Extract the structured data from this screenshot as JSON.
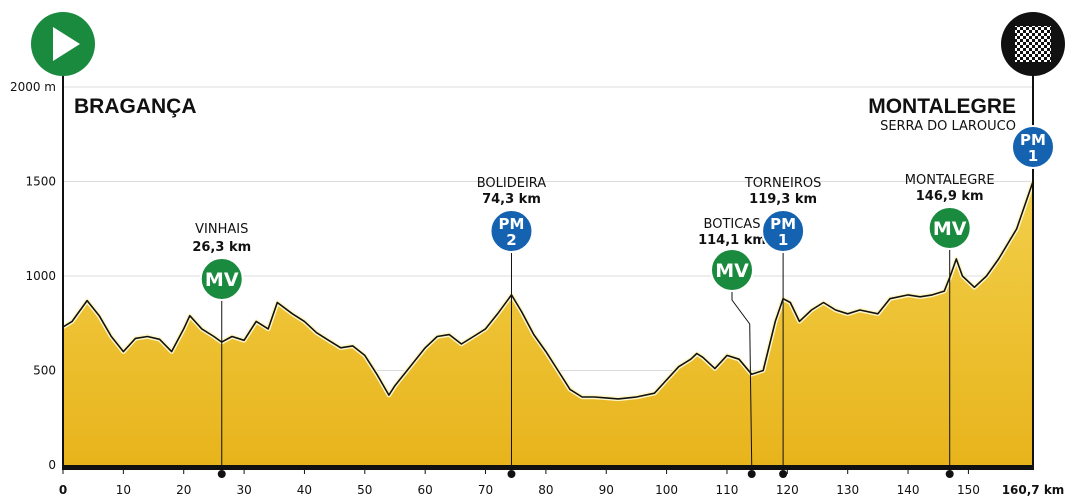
{
  "colors": {
    "profile_fill": "#e8b41c",
    "profile_fill_light": "#f2cf4a",
    "profile_stroke": "#111111",
    "climb_badge": "#1462b0",
    "sprint_badge": "#1a8a3e",
    "start_icon": "#1a8a3e",
    "finish_icon": "#111111"
  },
  "icons": {
    "start": "play-triangle-icon",
    "finish": "checkered-flag-icon"
  },
  "chart_data": {
    "type": "area",
    "title": "",
    "xlabel": "",
    "ylabel": "",
    "xlim": [
      0,
      160.7
    ],
    "ylim": [
      0,
      2000
    ],
    "y_unit": "m",
    "y_ticks": [
      "2000 m",
      "1500",
      "1000",
      "500",
      "0"
    ],
    "y_tick_values": [
      2000,
      1500,
      1000,
      500,
      0
    ],
    "x_ticks": [
      "0",
      "10",
      "20",
      "30",
      "40",
      "50",
      "60",
      "70",
      "80",
      "90",
      "100",
      "110",
      "120",
      "130",
      "140",
      "150"
    ],
    "x_tick_values": [
      0,
      10,
      20,
      30,
      40,
      50,
      60,
      70,
      80,
      90,
      100,
      110,
      120,
      130,
      140,
      150
    ],
    "x_end_label": "160,7 km",
    "x_end_value": 160.7,
    "grid": true,
    "start": {
      "name": "BRAGANÇA"
    },
    "finish": {
      "name": "MONTALEGRE",
      "subtitle": "SERRA DO LAROUCO"
    },
    "profile": {
      "x": [
        0,
        1.5,
        4,
        6,
        8,
        10,
        12,
        14,
        16,
        18,
        20,
        21,
        23,
        25,
        26.3,
        28,
        30,
        32,
        34,
        35.5,
        38,
        40,
        42,
        44,
        46,
        48,
        50,
        52,
        54,
        55,
        57,
        60,
        62,
        64,
        66,
        68,
        70,
        72,
        74.3,
        76,
        78,
        80,
        82,
        84,
        86,
        88,
        90,
        92,
        95,
        98,
        100,
        102,
        104,
        105,
        106,
        108,
        110,
        112,
        114.1,
        116,
        118,
        119.3,
        120.5,
        122,
        124,
        126,
        128,
        130,
        132,
        135,
        137,
        140,
        142,
        144,
        146,
        147,
        148,
        149,
        151,
        153,
        155,
        158,
        160.7
      ],
      "y": [
        730,
        760,
        870,
        790,
        680,
        600,
        670,
        680,
        665,
        600,
        720,
        790,
        720,
        680,
        650,
        680,
        660,
        760,
        720,
        860,
        800,
        760,
        700,
        660,
        620,
        630,
        580,
        480,
        370,
        420,
        500,
        620,
        680,
        690,
        640,
        680,
        720,
        800,
        900,
        810,
        690,
        600,
        500,
        400,
        360,
        360,
        355,
        350,
        360,
        380,
        450,
        520,
        560,
        590,
        570,
        510,
        580,
        560,
        480,
        500,
        760,
        880,
        860,
        760,
        820,
        860,
        820,
        800,
        820,
        800,
        880,
        900,
        890,
        900,
        920,
        1000,
        1090,
        1000,
        940,
        1000,
        1090,
        1250,
        1500
      ]
    },
    "markers": [
      {
        "type": "MV",
        "name": "VINHAIS",
        "km_label": "26,3 km",
        "km": 26.3,
        "badge_line1": "MV",
        "badge_line2": ""
      },
      {
        "type": "PM",
        "name": "BOLIDEIRA",
        "km_label": "74,3 km",
        "km": 74.3,
        "badge_line1": "PM",
        "badge_line2": "2"
      },
      {
        "type": "MV",
        "name": "BOTICAS",
        "km_label": "114,1 km",
        "km": 114.1,
        "badge_line1": "MV",
        "badge_line2": ""
      },
      {
        "type": "PM",
        "name": "TORNEIROS",
        "km_label": "119,3 km",
        "km": 119.3,
        "badge_line1": "PM",
        "badge_line2": "1"
      },
      {
        "type": "MV",
        "name": "MONTALEGRE",
        "km_label": "146,9 km",
        "km": 146.9,
        "badge_line1": "MV",
        "badge_line2": ""
      },
      {
        "type": "PM",
        "name": "",
        "km_label": "",
        "km": 160.7,
        "badge_line1": "PM",
        "badge_line2": "1"
      }
    ]
  }
}
